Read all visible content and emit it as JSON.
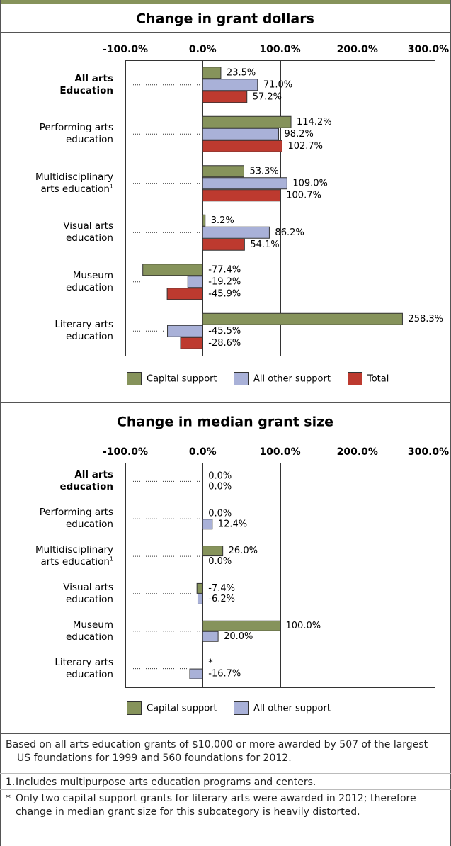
{
  "chart_data": [
    {
      "type": "bar",
      "orientation": "horizontal",
      "title": "Change in grant dollars",
      "categories": [
        "All arts\nEducation",
        "Performing arts\neducation",
        "Multidisciplinary\narts education",
        "Visual arts\neducation",
        "Museum\neducation",
        "Literary arts\neducation"
      ],
      "category_marks": [
        null,
        null,
        "1",
        null,
        null,
        null
      ],
      "series": [
        {
          "name": "Capital support",
          "color": "#86935b",
          "values": [
            23.5,
            114.2,
            53.3,
            3.2,
            -77.4,
            258.3
          ],
          "value_labels": [
            "23.5%",
            "114.2%",
            "53.3%",
            "3.2%",
            "-77.4%",
            "258.3%"
          ]
        },
        {
          "name": "All other support",
          "color": "#a9b1d8",
          "values": [
            71.0,
            98.2,
            109.0,
            86.2,
            -19.2,
            -45.5
          ],
          "value_labels": [
            "71.0%",
            "98.2%",
            "109.0%",
            "86.2%",
            "-19.2%",
            "-45.5%"
          ]
        },
        {
          "name": "Total",
          "color": "#bd3a2f",
          "values": [
            57.2,
            102.7,
            100.7,
            54.1,
            -45.9,
            -28.6
          ],
          "value_labels": [
            "57.2%",
            "102.7%",
            "100.7%",
            "54.1%",
            "-45.9%",
            "-28.6%"
          ]
        }
      ],
      "xlim": [
        -100,
        300
      ],
      "xticks": [
        {
          "value": -100,
          "label": "-100.0%"
        },
        {
          "value": 0,
          "label": "0.0%"
        },
        {
          "value": 100,
          "label": "100.0%"
        },
        {
          "value": 200,
          "label": "200.0%"
        },
        {
          "value": 300,
          "label": "300.0%"
        }
      ],
      "grid": true,
      "legend": "bottom"
    },
    {
      "type": "bar",
      "orientation": "horizontal",
      "title": "Change in median grant size",
      "categories": [
        "All arts\neducation",
        "Performing arts\neducation",
        "Multidisciplinary\narts education",
        "Visual arts\neducation",
        "Museum\neducation",
        "Literary arts\neducation"
      ],
      "category_marks": [
        null,
        null,
        "1",
        null,
        null,
        null
      ],
      "series": [
        {
          "name": "Capital support",
          "color": "#86935b",
          "values": [
            0.0,
            0.0,
            26.0,
            -7.4,
            100.0,
            null
          ],
          "value_labels": [
            "0.0%",
            "0.0%",
            "26.0%",
            "-7.4%",
            "100.0%",
            "*"
          ]
        },
        {
          "name": "All other support",
          "color": "#a9b1d8",
          "values": [
            0.0,
            12.4,
            0.0,
            -6.2,
            20.0,
            -16.7
          ],
          "value_labels": [
            "0.0%",
            "12.4%",
            "0.0%",
            "-6.2%",
            "20.0%",
            "-16.7%"
          ]
        }
      ],
      "xlim": [
        -100,
        300
      ],
      "xticks": [
        {
          "value": -100,
          "label": "-100.0%"
        },
        {
          "value": 0,
          "label": "0.0%"
        },
        {
          "value": 100,
          "label": "100.0%"
        },
        {
          "value": 200,
          "label": "200.0%"
        },
        {
          "value": 300,
          "label": "300.0%"
        }
      ],
      "grid": true,
      "legend": "bottom"
    }
  ],
  "notes": [
    {
      "text": "Based on all arts education grants of $10,000 or more awarded by 507 of the largest US foundations for 1999 and 560 foundations for 2012."
    },
    {
      "marker": "1.",
      "text": "Includes multipurpose arts education programs and centers."
    },
    {
      "marker": "*",
      "text": "Only two capital support grants for literary arts were awarded in 2012; therefore change in median grant size for this subcategory is heavily distorted."
    }
  ]
}
